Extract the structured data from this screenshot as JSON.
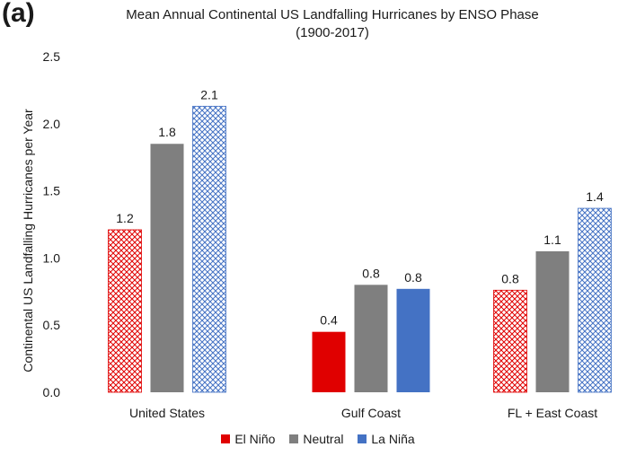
{
  "panel_label": "(a)",
  "chart_data": {
    "type": "bar",
    "title": "Mean Annual Continental US Landfalling Hurricanes by ENSO Phase",
    "subtitle": "(1900-2017)",
    "xlabel": "",
    "ylabel": "Continental US Landfalling Hurricanes per Year",
    "ylim": [
      0,
      2.5
    ],
    "yticks": [
      "0.0",
      "0.5",
      "1.0",
      "1.5",
      "2.0",
      "2.5"
    ],
    "grid": false,
    "legend_position": "bottom",
    "categories": [
      "United States",
      "Gulf Coast",
      "FL + East Coast"
    ],
    "series": [
      {
        "name": "El Niño",
        "color": "#e00000",
        "values": [
          1.21,
          0.45,
          0.76
        ],
        "labels": [
          "1.2",
          "0.4",
          "0.8"
        ],
        "hatched": [
          true,
          false,
          true
        ]
      },
      {
        "name": "Neutral",
        "color": "#7f7f7f",
        "values": [
          1.85,
          0.8,
          1.05
        ],
        "labels": [
          "1.8",
          "0.8",
          "1.1"
        ],
        "hatched": [
          false,
          false,
          false
        ]
      },
      {
        "name": "La Niña",
        "color": "#4472c4",
        "values": [
          2.13,
          0.77,
          1.37
        ],
        "labels": [
          "2.1",
          "0.8",
          "1.4"
        ],
        "hatched": [
          true,
          false,
          true
        ]
      }
    ]
  }
}
